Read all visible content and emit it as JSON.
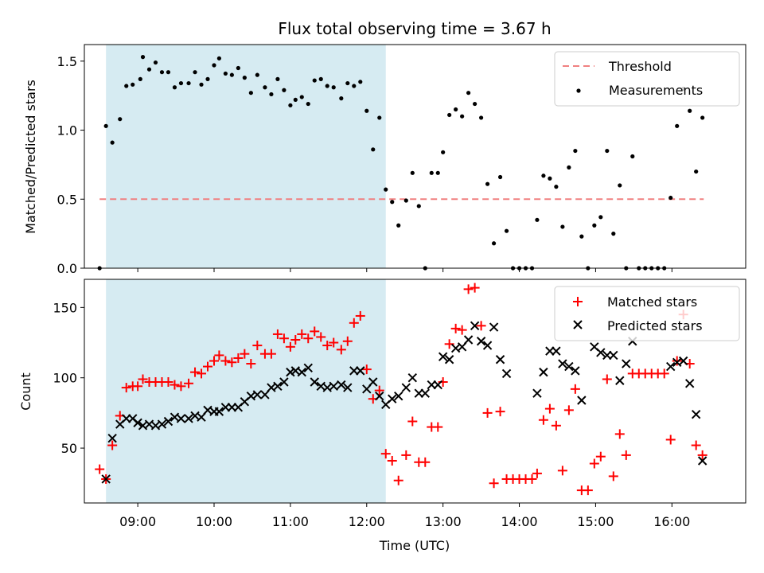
{
  "chart_data": {
    "type": "scatter",
    "title": "Flux total observing time = 3.67 h",
    "xlabel": "Time (UTC)",
    "x_ticks": [
      "09:00",
      "10:00",
      "11:00",
      "12:00",
      "13:00",
      "14:00",
      "15:00",
      "16:00"
    ],
    "xlim": [
      "08:18",
      "16:58"
    ],
    "observing_window": [
      "08:35",
      "12:15"
    ],
    "shade_color": "#add8e6",
    "top_panel": {
      "ylabel": "Matched/Predicted stars",
      "ylim": [
        0,
        1.62
      ],
      "y_ticks": [
        "0.0",
        "0.5",
        "1.0",
        "1.5"
      ],
      "legend_position": "top-right",
      "threshold": {
        "name": "Threshold",
        "value": 0.5,
        "x_range": [
          "08:30",
          "16:25"
        ],
        "color": "#f08080"
      },
      "measurements": {
        "name": "Measurements",
        "color": "#000000",
        "points": [
          [
            "08:30",
            0.0
          ],
          [
            "08:35",
            1.03
          ],
          [
            "08:40",
            0.91
          ],
          [
            "08:46",
            1.08
          ],
          [
            "08:51",
            1.32
          ],
          [
            "08:56",
            1.33
          ],
          [
            "09:02",
            1.37
          ],
          [
            "09:04",
            1.53
          ],
          [
            "09:09",
            1.44
          ],
          [
            "09:14",
            1.49
          ],
          [
            "09:19",
            1.42
          ],
          [
            "09:24",
            1.42
          ],
          [
            "09:29",
            1.31
          ],
          [
            "09:34",
            1.34
          ],
          [
            "09:40",
            1.34
          ],
          [
            "09:45",
            1.42
          ],
          [
            "09:50",
            1.33
          ],
          [
            "09:55",
            1.37
          ],
          [
            "10:00",
            1.47
          ],
          [
            "10:04",
            1.52
          ],
          [
            "10:09",
            1.41
          ],
          [
            "10:14",
            1.4
          ],
          [
            "10:19",
            1.45
          ],
          [
            "10:24",
            1.38
          ],
          [
            "10:29",
            1.27
          ],
          [
            "10:34",
            1.4
          ],
          [
            "10:40",
            1.31
          ],
          [
            "10:45",
            1.26
          ],
          [
            "10:50",
            1.37
          ],
          [
            "10:55",
            1.29
          ],
          [
            "11:00",
            1.18
          ],
          [
            "11:04",
            1.22
          ],
          [
            "11:09",
            1.24
          ],
          [
            "11:14",
            1.19
          ],
          [
            "11:19",
            1.36
          ],
          [
            "11:24",
            1.37
          ],
          [
            "11:29",
            1.32
          ],
          [
            "11:34",
            1.31
          ],
          [
            "11:40",
            1.23
          ],
          [
            "11:45",
            1.34
          ],
          [
            "11:50",
            1.32
          ],
          [
            "11:55",
            1.35
          ],
          [
            "12:00",
            1.14
          ],
          [
            "12:05",
            0.86
          ],
          [
            "12:10",
            1.09
          ],
          [
            "12:15",
            0.57
          ],
          [
            "12:20",
            0.48
          ],
          [
            "12:25",
            0.31
          ],
          [
            "12:31",
            0.49
          ],
          [
            "12:36",
            0.69
          ],
          [
            "12:41",
            0.45
          ],
          [
            "12:46",
            0.0
          ],
          [
            "12:51",
            0.69
          ],
          [
            "12:56",
            0.69
          ],
          [
            "13:00",
            0.84
          ],
          [
            "13:05",
            1.11
          ],
          [
            "13:10",
            1.15
          ],
          [
            "13:15",
            1.1
          ],
          [
            "13:20",
            1.27
          ],
          [
            "13:25",
            1.19
          ],
          [
            "13:30",
            1.09
          ],
          [
            "13:35",
            0.61
          ],
          [
            "13:40",
            0.18
          ],
          [
            "13:45",
            0.66
          ],
          [
            "13:50",
            0.27
          ],
          [
            "13:55",
            0.0
          ],
          [
            "14:00",
            0.0
          ],
          [
            "14:05",
            0.0
          ],
          [
            "14:10",
            0.0
          ],
          [
            "14:14",
            0.35
          ],
          [
            "14:19",
            0.67
          ],
          [
            "14:24",
            0.65
          ],
          [
            "14:29",
            0.59
          ],
          [
            "14:34",
            0.3
          ],
          [
            "14:39",
            0.73
          ],
          [
            "14:44",
            0.85
          ],
          [
            "14:49",
            0.23
          ],
          [
            "14:54",
            0.0
          ],
          [
            "14:59",
            0.31
          ],
          [
            "15:04",
            0.37
          ],
          [
            "15:09",
            0.85
          ],
          [
            "15:14",
            0.25
          ],
          [
            "15:19",
            0.6
          ],
          [
            "15:24",
            0.0
          ],
          [
            "15:29",
            0.81
          ],
          [
            "15:34",
            0.0
          ],
          [
            "15:39",
            0.0
          ],
          [
            "15:44",
            0.0
          ],
          [
            "15:49",
            0.0
          ],
          [
            "15:54",
            0.0
          ],
          [
            "15:59",
            0.51
          ],
          [
            "16:04",
            1.03
          ],
          [
            "16:09",
            1.3
          ],
          [
            "16:14",
            1.14
          ],
          [
            "16:19",
            0.7
          ],
          [
            "16:24",
            1.09
          ]
        ]
      }
    },
    "bottom_panel": {
      "ylabel": "Count",
      "ylim": [
        11,
        170
      ],
      "y_ticks": [
        "50",
        "100",
        "150"
      ],
      "legend_position": "top-right",
      "matched": {
        "name": "Matched stars",
        "color": "#ff0000",
        "marker": "+",
        "points": [
          [
            "08:30",
            35
          ],
          [
            "08:35",
            28
          ],
          [
            "08:40",
            52
          ],
          [
            "08:46",
            73
          ],
          [
            "08:51",
            93
          ],
          [
            "08:56",
            94
          ],
          [
            "09:00",
            94
          ],
          [
            "09:04",
            99
          ],
          [
            "09:09",
            97
          ],
          [
            "09:14",
            97
          ],
          [
            "09:19",
            97
          ],
          [
            "09:24",
            97
          ],
          [
            "09:29",
            95
          ],
          [
            "09:34",
            94
          ],
          [
            "09:40",
            96
          ],
          [
            "09:45",
            104
          ],
          [
            "09:50",
            103
          ],
          [
            "09:55",
            108
          ],
          [
            "10:00",
            112
          ],
          [
            "10:04",
            116
          ],
          [
            "10:09",
            112
          ],
          [
            "10:14",
            111
          ],
          [
            "10:19",
            114
          ],
          [
            "10:24",
            117
          ],
          [
            "10:29",
            110
          ],
          [
            "10:34",
            123
          ],
          [
            "10:40",
            117
          ],
          [
            "10:45",
            117
          ],
          [
            "10:50",
            131
          ],
          [
            "10:55",
            128
          ],
          [
            "11:00",
            122
          ],
          [
            "11:04",
            127
          ],
          [
            "11:09",
            131
          ],
          [
            "11:14",
            128
          ],
          [
            "11:19",
            133
          ],
          [
            "11:24",
            129
          ],
          [
            "11:29",
            123
          ],
          [
            "11:34",
            125
          ],
          [
            "11:40",
            120
          ],
          [
            "11:45",
            126
          ],
          [
            "11:50",
            139
          ],
          [
            "11:55",
            144
          ],
          [
            "12:00",
            106
          ],
          [
            "12:05",
            85
          ],
          [
            "12:10",
            91
          ],
          [
            "12:15",
            46
          ],
          [
            "12:20",
            41
          ],
          [
            "12:25",
            27
          ],
          [
            "12:31",
            45
          ],
          [
            "12:36",
            69
          ],
          [
            "12:41",
            40
          ],
          [
            "12:46",
            40
          ],
          [
            "12:51",
            65
          ],
          [
            "12:56",
            65
          ],
          [
            "13:00",
            97
          ],
          [
            "13:05",
            124
          ],
          [
            "13:10",
            135
          ],
          [
            "13:15",
            134
          ],
          [
            "13:20",
            163
          ],
          [
            "13:25",
            164
          ],
          [
            "13:30",
            137
          ],
          [
            "13:35",
            75
          ],
          [
            "13:40",
            25
          ],
          [
            "13:45",
            76
          ],
          [
            "13:50",
            28
          ],
          [
            "13:55",
            28
          ],
          [
            "14:00",
            28
          ],
          [
            "14:05",
            28
          ],
          [
            "14:10",
            28
          ],
          [
            "14:14",
            32
          ],
          [
            "14:19",
            70
          ],
          [
            "14:24",
            78
          ],
          [
            "14:29",
            66
          ],
          [
            "14:34",
            34
          ],
          [
            "14:39",
            77
          ],
          [
            "14:44",
            92
          ],
          [
            "14:49",
            20
          ],
          [
            "14:54",
            20
          ],
          [
            "14:59",
            39
          ],
          [
            "15:04",
            44
          ],
          [
            "15:09",
            99
          ],
          [
            "15:14",
            30
          ],
          [
            "15:19",
            60
          ],
          [
            "15:24",
            45
          ],
          [
            "15:29",
            103
          ],
          [
            "15:34",
            103
          ],
          [
            "15:39",
            103
          ],
          [
            "15:44",
            103
          ],
          [
            "15:49",
            103
          ],
          [
            "15:54",
            103
          ],
          [
            "15:59",
            56
          ],
          [
            "16:04",
            112
          ],
          [
            "16:09",
            145
          ],
          [
            "16:14",
            110
          ],
          [
            "16:19",
            52
          ],
          [
            "16:24",
            45
          ]
        ]
      },
      "predicted": {
        "name": "Predicted stars",
        "color": "#000000",
        "marker": "x",
        "points": [
          [
            "08:35",
            28
          ],
          [
            "08:40",
            57
          ],
          [
            "08:46",
            67
          ],
          [
            "08:51",
            71
          ],
          [
            "08:56",
            71
          ],
          [
            "09:00",
            68
          ],
          [
            "09:04",
            66
          ],
          [
            "09:09",
            67
          ],
          [
            "09:14",
            66
          ],
          [
            "09:19",
            67
          ],
          [
            "09:24",
            69
          ],
          [
            "09:29",
            72
          ],
          [
            "09:34",
            71
          ],
          [
            "09:40",
            71
          ],
          [
            "09:45",
            73
          ],
          [
            "09:50",
            72
          ],
          [
            "09:55",
            77
          ],
          [
            "10:00",
            76
          ],
          [
            "10:04",
            76
          ],
          [
            "10:09",
            79
          ],
          [
            "10:14",
            79
          ],
          [
            "10:19",
            79
          ],
          [
            "10:24",
            83
          ],
          [
            "10:29",
            87
          ],
          [
            "10:34",
            88
          ],
          [
            "10:40",
            88
          ],
          [
            "10:45",
            93
          ],
          [
            "10:50",
            94
          ],
          [
            "10:55",
            97
          ],
          [
            "11:00",
            104
          ],
          [
            "11:04",
            105
          ],
          [
            "11:09",
            104
          ],
          [
            "11:14",
            107
          ],
          [
            "11:19",
            97
          ],
          [
            "11:24",
            94
          ],
          [
            "11:29",
            93
          ],
          [
            "11:34",
            94
          ],
          [
            "11:40",
            95
          ],
          [
            "11:45",
            93
          ],
          [
            "11:50",
            105
          ],
          [
            "11:55",
            105
          ],
          [
            "12:00",
            92
          ],
          [
            "12:05",
            97
          ],
          [
            "12:10",
            87
          ],
          [
            "12:15",
            81
          ],
          [
            "12:20",
            85
          ],
          [
            "12:25",
            87
          ],
          [
            "12:31",
            93
          ],
          [
            "12:36",
            100
          ],
          [
            "12:41",
            89
          ],
          [
            "12:46",
            89
          ],
          [
            "12:51",
            95
          ],
          [
            "12:56",
            95
          ],
          [
            "13:00",
            115
          ],
          [
            "13:05",
            113
          ],
          [
            "13:10",
            121
          ],
          [
            "13:15",
            122
          ],
          [
            "13:20",
            127
          ],
          [
            "13:25",
            137
          ],
          [
            "13:30",
            126
          ],
          [
            "13:35",
            123
          ],
          [
            "13:40",
            136
          ],
          [
            "13:45",
            113
          ],
          [
            "13:50",
            103
          ],
          [
            "14:14",
            89
          ],
          [
            "14:19",
            104
          ],
          [
            "14:24",
            119
          ],
          [
            "14:29",
            119
          ],
          [
            "14:34",
            110
          ],
          [
            "14:39",
            108
          ],
          [
            "14:44",
            105
          ],
          [
            "14:49",
            84
          ],
          [
            "14:59",
            122
          ],
          [
            "15:04",
            118
          ],
          [
            "15:09",
            116
          ],
          [
            "15:14",
            116
          ],
          [
            "15:19",
            98
          ],
          [
            "15:24",
            110
          ],
          [
            "15:29",
            126
          ],
          [
            "15:59",
            108
          ],
          [
            "16:04",
            111
          ],
          [
            "16:09",
            112
          ],
          [
            "16:14",
            96
          ],
          [
            "16:19",
            74
          ],
          [
            "16:24",
            41
          ]
        ]
      }
    }
  }
}
